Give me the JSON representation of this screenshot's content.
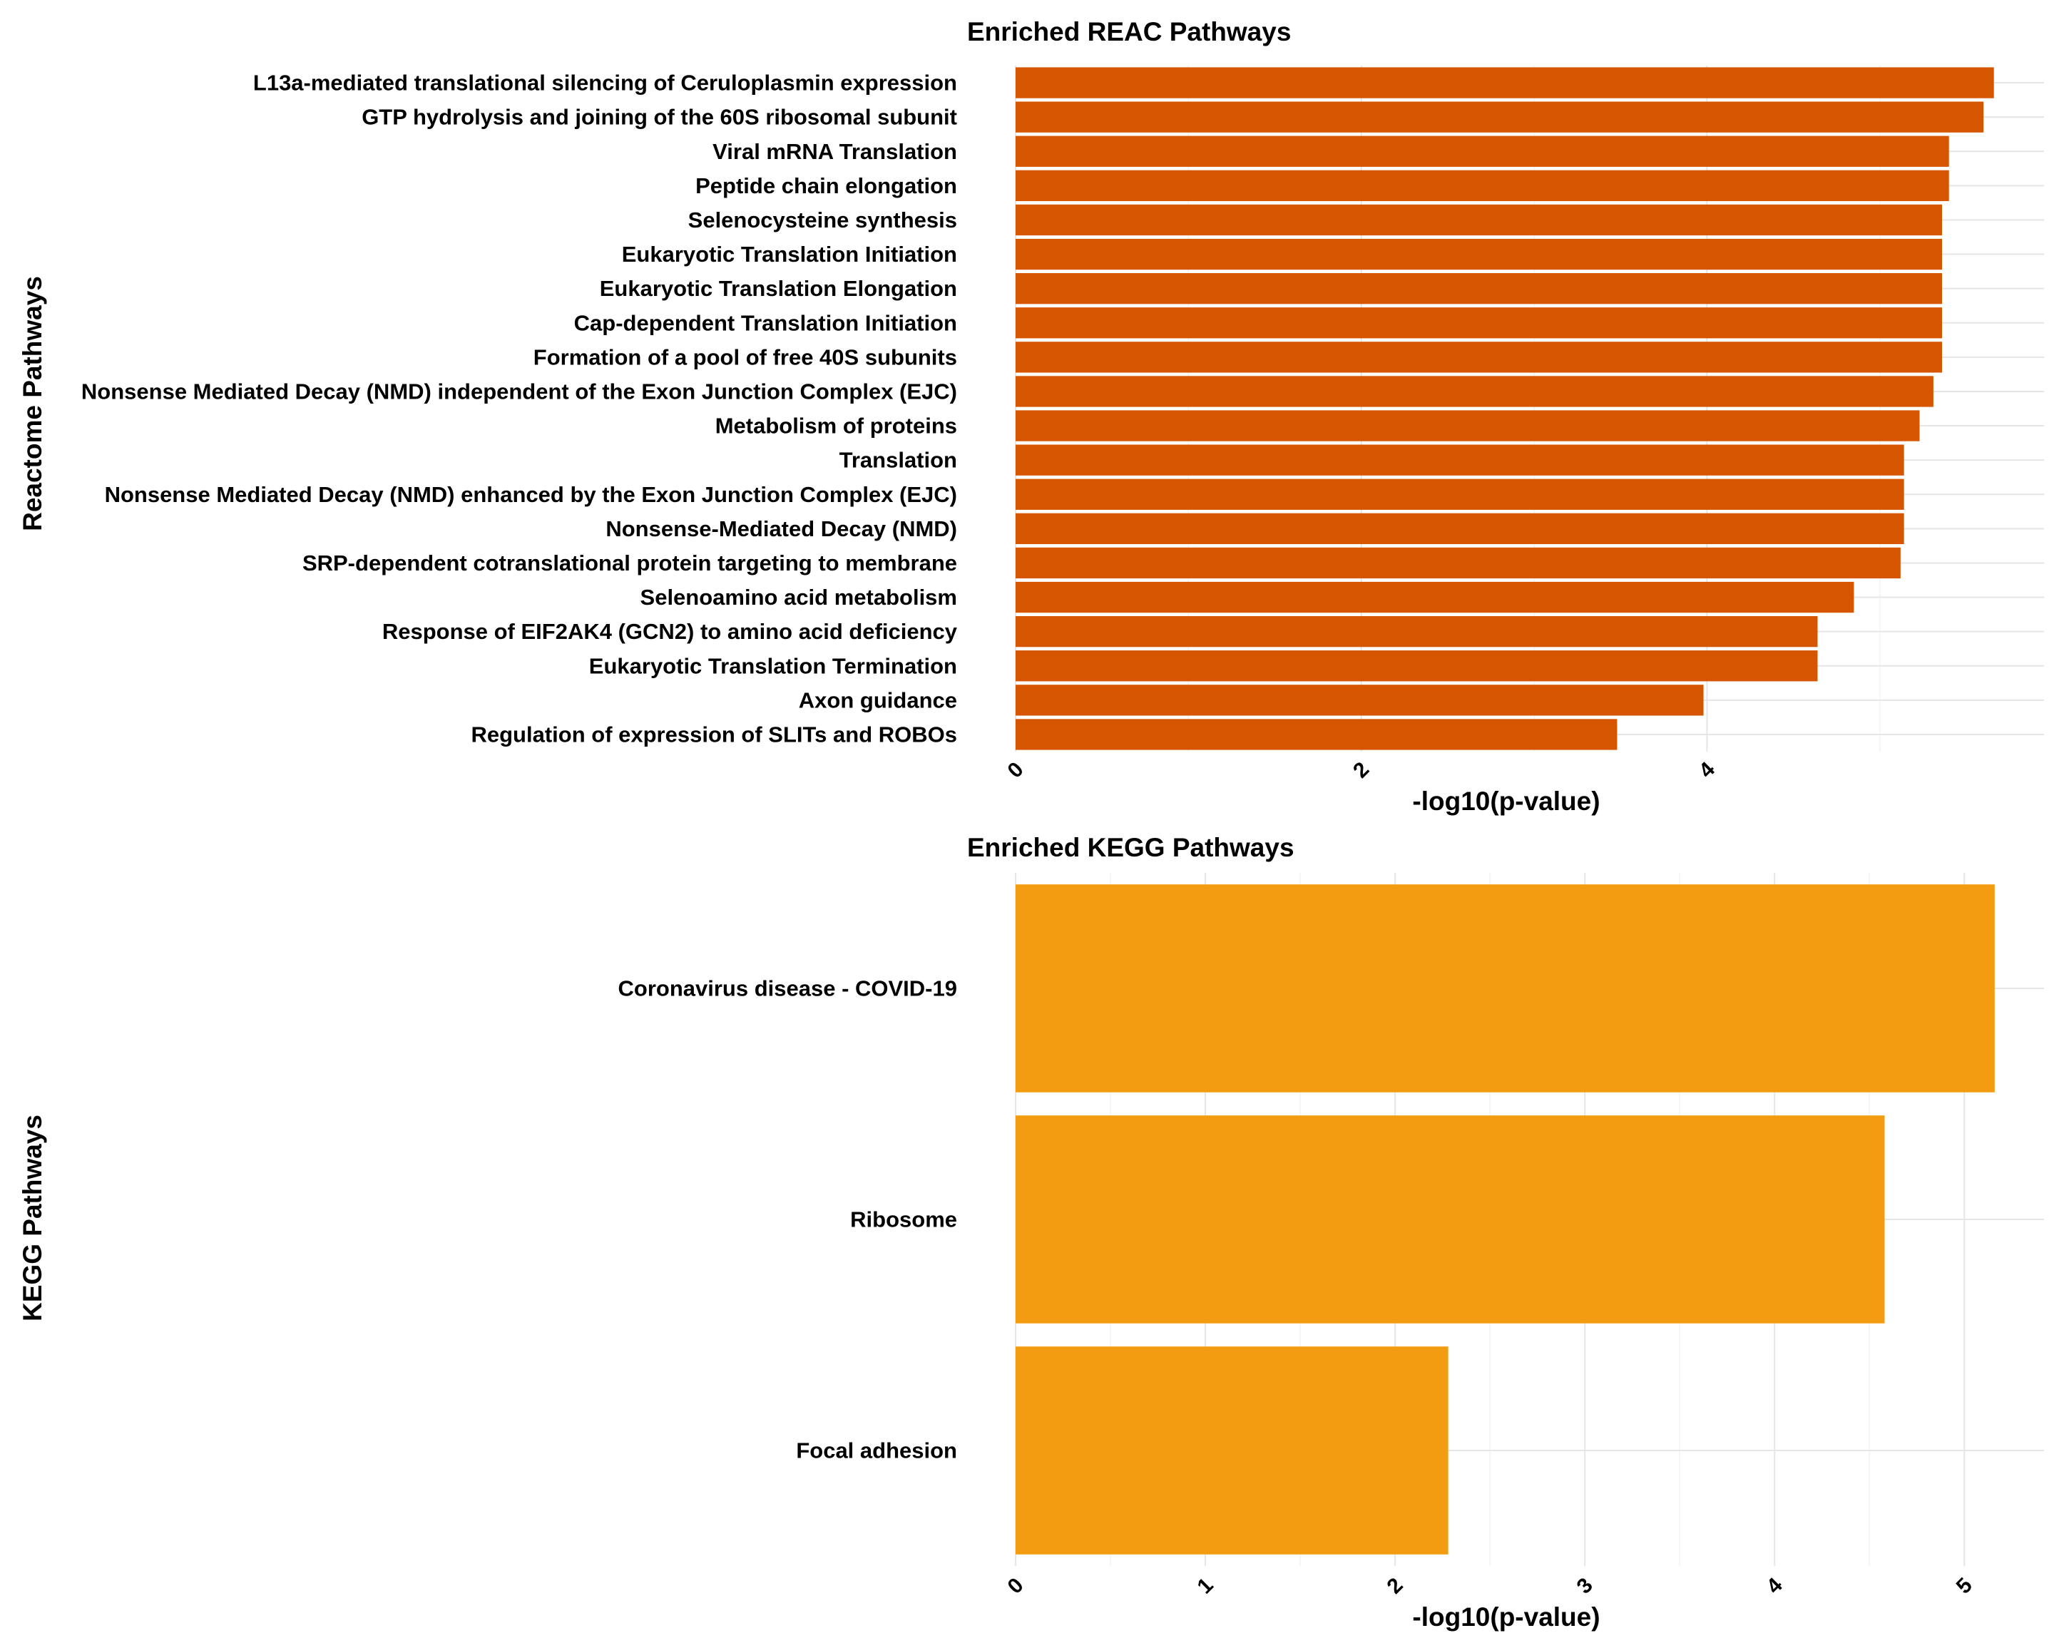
{
  "chart_data": [
    {
      "type": "bar",
      "orientation": "horizontal",
      "title": "Enriched REAC Pathways",
      "xlabel": "-log10(p-value)",
      "ylabel": "Reactome Pathways",
      "categories": [
        "L13a-mediated translational silencing of Ceruloplasmin expression",
        "GTP hydrolysis and joining of the 60S ribosomal subunit",
        "Viral mRNA Translation",
        "Peptide chain elongation",
        "Selenocysteine synthesis",
        "Eukaryotic Translation Initiation",
        "Eukaryotic Translation Elongation",
        "Cap-dependent Translation Initiation",
        "Formation of a pool of free 40S subunits",
        "Nonsense Mediated Decay (NMD) independent of the Exon Junction Complex (EJC)",
        "Metabolism of proteins",
        "Translation",
        "Nonsense Mediated Decay (NMD) enhanced by the Exon Junction Complex (EJC)",
        "Nonsense-Mediated Decay (NMD)",
        "SRP-dependent cotranslational protein targeting to membrane",
        "Selenoamino acid metabolism",
        "Response of EIF2AK4 (GCN2) to amino acid deficiency",
        "Eukaryotic Translation Termination",
        "Axon guidance",
        "Regulation of expression of SLITs and ROBOs"
      ],
      "values": [
        5.66,
        5.6,
        5.4,
        5.4,
        5.36,
        5.36,
        5.36,
        5.36,
        5.36,
        5.31,
        5.23,
        5.14,
        5.14,
        5.14,
        5.12,
        4.85,
        4.64,
        4.64,
        3.98,
        3.48
      ],
      "xticks": [
        "0",
        "2",
        "4"
      ],
      "xlim": [
        0,
        5.95
      ],
      "bar_color": "#d55500",
      "grid": true,
      "legend": "none"
    },
    {
      "type": "bar",
      "orientation": "horizontal",
      "title": "Enriched KEGG Pathways",
      "xlabel": "-log10(p-value)",
      "ylabel": "KEGG Pathways",
      "categories": [
        "Coronavirus disease - COVID-19",
        "Ribosome",
        "Focal adhesion"
      ],
      "values": [
        5.16,
        4.58,
        2.28
      ],
      "xticks": [
        "0",
        "1",
        "2",
        "3",
        "4",
        "5"
      ],
      "xlim": [
        0,
        5.42
      ],
      "bar_color": "#f39c12",
      "grid": true,
      "legend": "none"
    }
  ]
}
